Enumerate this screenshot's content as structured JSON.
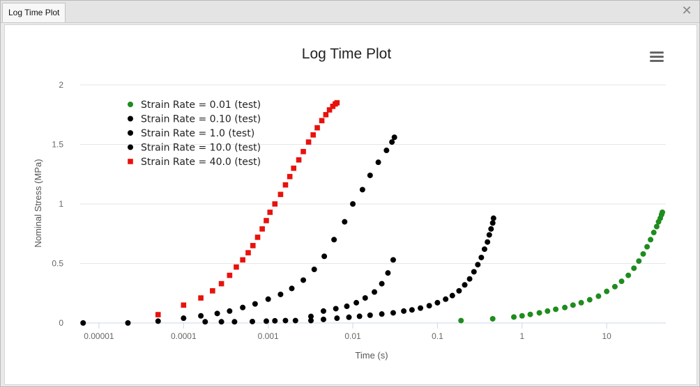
{
  "window": {
    "tab_label": "Log Time Plot",
    "close_glyph": "✕"
  },
  "chart_data": {
    "type": "scatter",
    "title": "Log Time Plot",
    "xlabel": "Time (s)",
    "ylabel": "Nominal Stress (MPa)",
    "xscale": "log",
    "xlim": [
      6e-06,
      50
    ],
    "ylim": [
      0,
      2
    ],
    "grid": "horizontal",
    "legend_position": "top-left",
    "x_ticks": [
      {
        "value": 1e-05,
        "label": "0.00001"
      },
      {
        "value": 0.0001,
        "label": "0.0001"
      },
      {
        "value": 0.001,
        "label": "0.001"
      },
      {
        "value": 0.01,
        "label": "0.01"
      },
      {
        "value": 0.1,
        "label": "0.1"
      },
      {
        "value": 1,
        "label": "1"
      },
      {
        "value": 10,
        "label": "10"
      }
    ],
    "y_ticks": [
      {
        "value": 0,
        "label": "0"
      },
      {
        "value": 0.5,
        "label": "0.5"
      },
      {
        "value": 1,
        "label": "1"
      },
      {
        "value": 1.5,
        "label": "1.5"
      },
      {
        "value": 2,
        "label": "2"
      }
    ],
    "series": [
      {
        "name": "Strain Rate = 0.01 (test)",
        "color": "#1e8c1e",
        "marker": "circle",
        "x": [
          0.19,
          0.45,
          0.8,
          1.0,
          1.25,
          1.6,
          2.0,
          2.5,
          3.2,
          4.0,
          5.0,
          6.3,
          8.0,
          10.0,
          12.5,
          15.0,
          18.0,
          21.0,
          24.0,
          27.0,
          30.0,
          33.0,
          36.0,
          39.0,
          41.0,
          43.0,
          44.5,
          45.5
        ],
        "y": [
          0.02,
          0.035,
          0.05,
          0.06,
          0.072,
          0.085,
          0.1,
          0.115,
          0.13,
          0.15,
          0.17,
          0.195,
          0.225,
          0.265,
          0.305,
          0.35,
          0.4,
          0.46,
          0.52,
          0.58,
          0.64,
          0.7,
          0.76,
          0.81,
          0.85,
          0.88,
          0.91,
          0.93
        ]
      },
      {
        "name": "Strain Rate = 0.10 (test)",
        "color": "#000000",
        "marker": "circle",
        "x": [
          0.0032,
          0.0045,
          0.0065,
          0.009,
          0.012,
          0.016,
          0.022,
          0.03,
          0.04,
          0.05,
          0.063,
          0.08,
          0.1,
          0.125,
          0.15,
          0.18,
          0.21,
          0.24,
          0.27,
          0.3,
          0.33,
          0.36,
          0.39,
          0.41,
          0.43,
          0.45,
          0.46
        ],
        "y": [
          0.02,
          0.03,
          0.04,
          0.048,
          0.056,
          0.065,
          0.075,
          0.085,
          0.1,
          0.11,
          0.125,
          0.145,
          0.17,
          0.2,
          0.23,
          0.27,
          0.32,
          0.37,
          0.43,
          0.49,
          0.55,
          0.62,
          0.68,
          0.74,
          0.79,
          0.84,
          0.88
        ]
      },
      {
        "name": "Strain Rate = 1.0 (test)",
        "color": "#000000",
        "marker": "circle",
        "x": [
          0.00018,
          0.00028,
          0.0004,
          0.00065,
          0.00095,
          0.0012,
          0.0016,
          0.0021,
          0.0032,
          0.0045,
          0.0063,
          0.0085,
          0.011,
          0.014,
          0.018,
          0.022,
          0.026,
          0.03
        ],
        "y": [
          0.01,
          0.01,
          0.01,
          0.012,
          0.015,
          0.018,
          0.02,
          0.02,
          0.055,
          0.1,
          0.12,
          0.14,
          0.17,
          0.21,
          0.26,
          0.33,
          0.42,
          0.53
        ]
      },
      {
        "name": "Strain Rate = 10.0 (test)",
        "color": "#000000",
        "marker": "circle",
        "x": [
          6.5e-06,
          2.2e-05,
          5e-05,
          0.0001,
          0.00016,
          0.00025,
          0.00035,
          0.0005,
          0.0007,
          0.001,
          0.0014,
          0.0019,
          0.0026,
          0.0035,
          0.0046,
          0.006,
          0.008,
          0.01,
          0.013,
          0.016,
          0.02,
          0.025,
          0.029,
          0.031
        ],
        "y": [
          0.0,
          0.0,
          0.015,
          0.04,
          0.06,
          0.08,
          0.1,
          0.13,
          0.16,
          0.2,
          0.24,
          0.29,
          0.36,
          0.45,
          0.56,
          0.7,
          0.85,
          1.0,
          1.12,
          1.24,
          1.35,
          1.45,
          1.52,
          1.56
        ]
      },
      {
        "name": "Strain Rate = 40.0 (test)",
        "color": "#e8120c",
        "marker": "square",
        "x": [
          5e-05,
          0.0001,
          0.00016,
          0.00022,
          0.00028,
          0.00035,
          0.00042,
          0.0005,
          0.00058,
          0.00066,
          0.00075,
          0.00085,
          0.00095,
          0.00105,
          0.0012,
          0.0014,
          0.0016,
          0.0018,
          0.002,
          0.0023,
          0.0026,
          0.003,
          0.0034,
          0.0038,
          0.0043,
          0.0048,
          0.0053,
          0.0058,
          0.0062,
          0.0065
        ],
        "y": [
          0.07,
          0.15,
          0.21,
          0.27,
          0.33,
          0.4,
          0.47,
          0.53,
          0.59,
          0.65,
          0.72,
          0.79,
          0.86,
          0.93,
          1.0,
          1.08,
          1.16,
          1.23,
          1.3,
          1.37,
          1.44,
          1.52,
          1.58,
          1.64,
          1.7,
          1.75,
          1.79,
          1.82,
          1.84,
          1.85
        ]
      }
    ]
  }
}
